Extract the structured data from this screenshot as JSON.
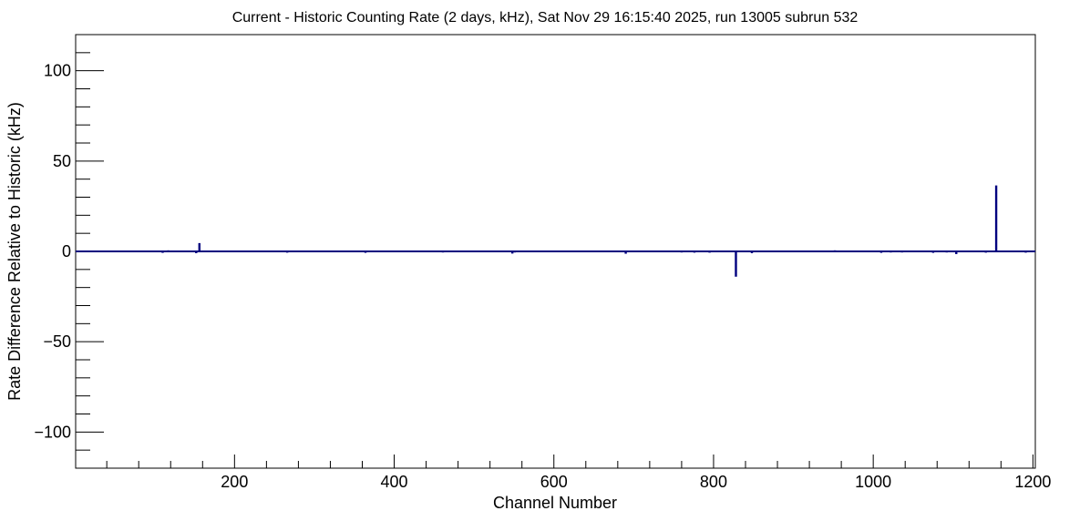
{
  "chart_data": {
    "type": "bar",
    "title": "Current - Historic Counting Rate (2 days, kHz), Sat Nov 29 16:15:40 2025, run 13005 subrun 532",
    "xlabel": "Channel Number",
    "ylabel": "Rate Difference Relative to Historic (kHz)",
    "xlim": [
      1,
      1203
    ],
    "ylim": [
      -120,
      120
    ],
    "x_major_ticks": [
      200,
      400,
      600,
      800,
      1000,
      1200
    ],
    "y_major_ticks": [
      -100,
      -50,
      0,
      50,
      100
    ],
    "x_tick_labels": [
      "200",
      "400",
      "600",
      "800",
      "1000",
      "1200"
    ],
    "y_tick_labels": [
      "−100",
      "−50",
      "0",
      "50",
      "100"
    ],
    "grid": false,
    "series_color": "#00007f",
    "series": [
      {
        "x": [
          110,
          117,
          152,
          156,
          266,
          364,
          461,
          481,
          548,
          551,
          690,
          760,
          776,
          795,
          828,
          848,
          952,
          1010,
          1022,
          1036,
          1075,
          1092,
          1104,
          1141,
          1154,
          1160,
          1191,
          1198
        ],
        "values": [
          -0.8,
          0.6,
          -1.0,
          4.6,
          -0.7,
          -0.8,
          -0.6,
          0.5,
          -1.2,
          -0.6,
          -1.3,
          -0.6,
          -0.7,
          -0.7,
          -14,
          -1.0,
          0.6,
          -0.8,
          -0.6,
          -0.6,
          -0.8,
          -0.6,
          -1.5,
          -0.7,
          36.5,
          -0.5,
          -0.7,
          -0.4
        ]
      }
    ]
  }
}
